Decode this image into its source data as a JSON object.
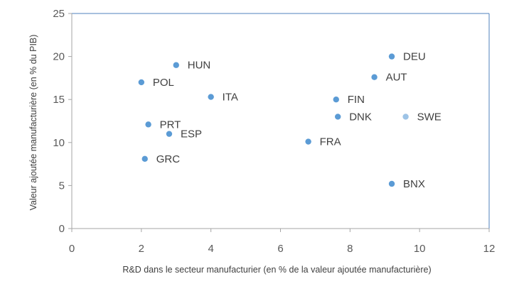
{
  "chart_data": {
    "type": "scatter",
    "xlabel": "R&D dans le secteur manufacturier (en % de la valeur ajoutée manufacturière)",
    "ylabel": "Valeur ajoutée manufacturière (en % du PIB)",
    "xlim": [
      0,
      12
    ],
    "ylim": [
      0,
      25
    ],
    "xticks": [
      0,
      2,
      4,
      6,
      8,
      10,
      12
    ],
    "yticks": [
      0,
      5,
      10,
      15,
      20,
      25
    ],
    "grid": false,
    "points": [
      {
        "label": "HUN",
        "x": 3.0,
        "y": 19.0,
        "color": "#5b9bd5"
      },
      {
        "label": "POL",
        "x": 2.0,
        "y": 17.0,
        "color": "#5b9bd5"
      },
      {
        "label": "ITA",
        "x": 4.0,
        "y": 15.3,
        "color": "#5b9bd5"
      },
      {
        "label": "PRT",
        "x": 2.2,
        "y": 12.1,
        "color": "#5b9bd5"
      },
      {
        "label": "ESP",
        "x": 2.8,
        "y": 11.0,
        "color": "#5b9bd5"
      },
      {
        "label": "GRC",
        "x": 2.1,
        "y": 8.1,
        "color": "#5b9bd5"
      },
      {
        "label": "DEU",
        "x": 9.2,
        "y": 20.0,
        "color": "#5b9bd5"
      },
      {
        "label": "AUT",
        "x": 8.7,
        "y": 17.6,
        "color": "#5b9bd5"
      },
      {
        "label": "FIN",
        "x": 7.6,
        "y": 15.0,
        "color": "#5b9bd5"
      },
      {
        "label": "DNK",
        "x": 7.65,
        "y": 13.0,
        "color": "#5b9bd5"
      },
      {
        "label": "SWE",
        "x": 9.6,
        "y": 13.0,
        "color": "#9dc3e6"
      },
      {
        "label": "FRA",
        "x": 6.8,
        "y": 10.1,
        "color": "#5b9bd5"
      },
      {
        "label": "BNX",
        "x": 9.2,
        "y": 5.2,
        "color": "#5b9bd5"
      }
    ],
    "axis_color": "#a6a6a6",
    "frame_color": "#4f81bd"
  }
}
